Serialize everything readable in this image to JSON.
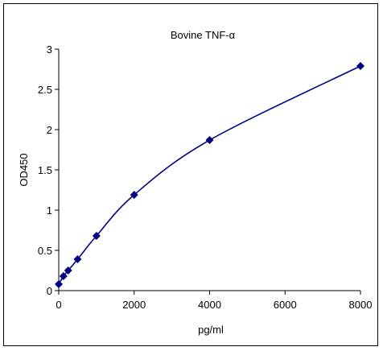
{
  "chart_data": {
    "type": "line",
    "title": "Bovine  TNF-α",
    "xlabel": "pg/ml",
    "ylabel": "OD450",
    "xlim": [
      0,
      8000
    ],
    "ylim": [
      0,
      3
    ],
    "x_ticks": [
      0,
      2000,
      4000,
      6000,
      8000
    ],
    "y_ticks": [
      0,
      0.5,
      1,
      1.5,
      2,
      2.5,
      3
    ],
    "x_tick_labels": [
      "0",
      "2000",
      "4000",
      "6000",
      "8000"
    ],
    "y_tick_labels": [
      "0",
      "0.5",
      "1",
      "1.5",
      "2",
      "2.5",
      "3"
    ],
    "grid": false,
    "legend": "none",
    "series": [
      {
        "color": "#000080",
        "marker": "diamond",
        "smooth": true,
        "x": [
          0,
          125,
          250,
          500,
          1000,
          2000,
          4000,
          8000
        ],
        "y": [
          0.08,
          0.18,
          0.25,
          0.39,
          0.68,
          1.19,
          1.87,
          2.79
        ]
      }
    ]
  }
}
